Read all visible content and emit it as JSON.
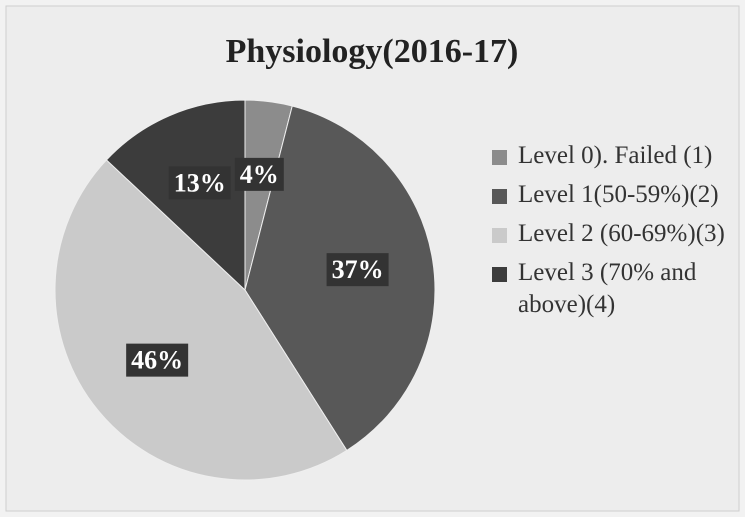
{
  "chart_data": {
    "type": "pie",
    "title": "Physiology(2016-17)",
    "categories": [
      "Level 0). Failed (1)",
      "Level 1(50-59%)(2)",
      "Level 2 (60-69%)(3)",
      "Level 3 (70% and above)(4)"
    ],
    "values": [
      4,
      37,
      46,
      13
    ],
    "value_labels": [
      "4%",
      "37%",
      "46%",
      "13%"
    ],
    "colors": [
      "#8c8c8c",
      "#585858",
      "#cacaca",
      "#3c3c3c"
    ],
    "legend": "right"
  }
}
